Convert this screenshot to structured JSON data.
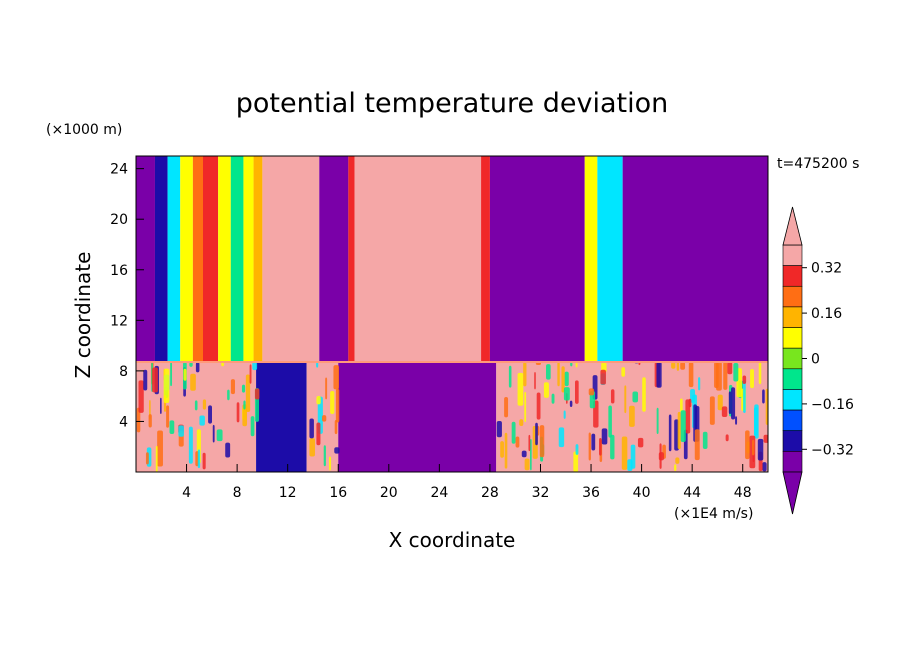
{
  "chart_data": {
    "type": "heatmap",
    "title": "potential temperature deviation",
    "xlabel": "X coordinate",
    "ylabel": "Z coordinate",
    "x_units": "(×1E4 m/s)",
    "y_units": "(×1000 m)",
    "time_label": "t=475200 s",
    "xlim": [
      0,
      50
    ],
    "ylim": [
      0,
      25
    ],
    "x_ticks": [
      4,
      8,
      12,
      16,
      20,
      24,
      28,
      32,
      36,
      40,
      44,
      48
    ],
    "y_ticks": [
      4,
      8,
      12,
      16,
      20,
      24
    ],
    "colorbar": {
      "levels": [
        -0.4,
        -0.32,
        -0.24,
        -0.16,
        -0.08,
        0,
        0.08,
        0.16,
        0.24,
        0.32,
        0.4
      ],
      "tick_labels": [
        "0.32",
        "0.16",
        "0",
        "−0.16",
        "−0.32"
      ],
      "tick_values": [
        0.32,
        0.16,
        0,
        -0.16,
        -0.32
      ],
      "colors": [
        "#7a00a8",
        "#1c0ca8",
        "#0050ff",
        "#00e6ff",
        "#00e68c",
        "#78e61e",
        "#ffff00",
        "#ffb400",
        "#ff6e14",
        "#f02828",
        "#f5a7a7"
      ],
      "extend": "both"
    },
    "interface_height": 8.7,
    "upper_columns": [
      {
        "x": [
          0,
          1.5
        ],
        "value": -0.4
      },
      {
        "x": [
          1.5,
          2.5
        ],
        "value": -0.3
      },
      {
        "x": [
          2.5,
          3.5
        ],
        "value": -0.15
      },
      {
        "x": [
          3.5,
          4.5
        ],
        "value": 0.05
      },
      {
        "x": [
          4.5,
          5.3
        ],
        "value": 0.25
      },
      {
        "x": [
          5.3,
          6.5
        ],
        "value": 0.3
      },
      {
        "x": [
          6.5,
          7.5
        ],
        "value": 0.1
      },
      {
        "x": [
          7.5,
          8.5
        ],
        "value": -0.1
      },
      {
        "x": [
          8.5,
          9.3
        ],
        "value": 0.05
      },
      {
        "x": [
          9.3,
          10
        ],
        "value": 0.2
      },
      {
        "x": [
          10,
          14.5
        ],
        "value": 0.4
      },
      {
        "x": [
          14.5,
          16.8
        ],
        "value": -0.4
      },
      {
        "x": [
          16.8,
          17.3
        ],
        "value": 0.3
      },
      {
        "x": [
          17.3,
          27.3
        ],
        "value": 0.4
      },
      {
        "x": [
          27.3,
          28
        ],
        "value": 0.3
      },
      {
        "x": [
          28,
          35.5
        ],
        "value": -0.4
      },
      {
        "x": [
          35.5,
          36.5
        ],
        "value": 0.1
      },
      {
        "x": [
          36.5,
          38.5
        ],
        "value": -0.15
      },
      {
        "x": [
          38.5,
          50
        ],
        "value": -0.4
      }
    ],
    "lower_columns": [
      {
        "x": [
          0,
          9.5
        ],
        "value": 0.4
      },
      {
        "x": [
          9.5,
          13.5
        ],
        "value": -0.35
      },
      {
        "x": [
          13.5,
          16
        ],
        "value": 0.4
      },
      {
        "x": [
          16,
          28.5
        ],
        "value": -0.4
      },
      {
        "x": [
          28.5,
          50
        ],
        "value": 0.4
      }
    ]
  }
}
